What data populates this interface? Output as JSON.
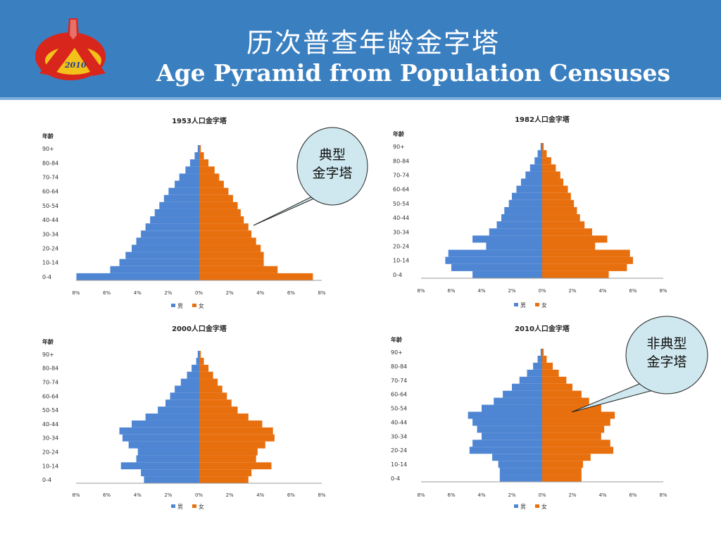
{
  "header": {
    "title_zh": "历次普查年龄金字塔",
    "title_en": "Age Pyramid from Population Censuses",
    "logo_text": "2010"
  },
  "colors": {
    "male": "#4f86d3",
    "female": "#e86f0e",
    "header": "#3a7fc0",
    "callout": "#cfe8ef"
  },
  "callouts": [
    {
      "lines": [
        "典型",
        "金字塔"
      ]
    },
    {
      "lines": [
        "非典型",
        "金字塔"
      ]
    }
  ],
  "chart_data": [
    {
      "type": "bar",
      "title": "1953人口金字塔",
      "ylabel": "年龄",
      "categories": [
        "0-4",
        "",
        "10-14",
        "",
        "20-24",
        "",
        "30-34",
        "",
        "40-44",
        "",
        "50-54",
        "",
        "60-64",
        "",
        "70-74",
        "",
        "80-84",
        "",
        "90+"
      ],
      "xticks": [
        "8%",
        "6%",
        "4%",
        "2%",
        "0%",
        "2%",
        "4%",
        "6%",
        "8%"
      ],
      "xlim": [
        -8,
        8
      ],
      "legend": [
        "男",
        "女"
      ],
      "series": [
        {
          "name": "男",
          "values": [
            8.0,
            5.8,
            5.2,
            4.8,
            4.4,
            4.1,
            3.8,
            3.5,
            3.2,
            2.9,
            2.6,
            2.3,
            2.0,
            1.6,
            1.3,
            0.9,
            0.6,
            0.3,
            0.1
          ]
        },
        {
          "name": "女",
          "values": [
            7.4,
            5.1,
            4.2,
            4.2,
            4.0,
            3.7,
            3.4,
            3.2,
            2.9,
            2.7,
            2.5,
            2.2,
            1.9,
            1.6,
            1.3,
            1.0,
            0.6,
            0.3,
            0.1
          ]
        }
      ]
    },
    {
      "type": "bar",
      "title": "1982人口金字塔",
      "ylabel": "年龄",
      "categories": [
        "0-4",
        "",
        "10-14",
        "",
        "20-24",
        "",
        "30-34",
        "",
        "40-44",
        "",
        "50-54",
        "",
        "60-64",
        "",
        "70-74",
        "",
        "80-84",
        "",
        "90+"
      ],
      "xticks": [
        "8%",
        "6%",
        "4%",
        "2%",
        "0%",
        "2%",
        "4%",
        "6%",
        "8%"
      ],
      "xlim": [
        -8,
        8
      ],
      "legend": [
        "男",
        "女"
      ],
      "series": [
        {
          "name": "男",
          "values": [
            4.6,
            6.0,
            6.4,
            6.2,
            3.7,
            4.6,
            3.5,
            3.0,
            2.7,
            2.5,
            2.2,
            2.0,
            1.7,
            1.4,
            1.1,
            0.8,
            0.5,
            0.3,
            0.1
          ]
        },
        {
          "name": "女",
          "values": [
            4.4,
            5.6,
            6.0,
            5.8,
            3.5,
            4.3,
            3.3,
            2.8,
            2.5,
            2.3,
            2.1,
            1.9,
            1.7,
            1.4,
            1.2,
            0.9,
            0.6,
            0.3,
            0.1
          ]
        }
      ]
    },
    {
      "type": "bar",
      "title": "2000人口金字塔",
      "ylabel": "年龄",
      "categories": [
        "0-4",
        "",
        "10-14",
        "",
        "20-24",
        "",
        "30-34",
        "",
        "40-44",
        "",
        "50-54",
        "",
        "60-64",
        "",
        "70-74",
        "",
        "80-84",
        "",
        "90+"
      ],
      "xticks": [
        "8%",
        "6%",
        "4%",
        "2%",
        "0%",
        "2%",
        "4%",
        "6%",
        "8%"
      ],
      "xlim": [
        -8,
        8
      ],
      "legend": [
        "男",
        "女"
      ],
      "series": [
        {
          "name": "男",
          "values": [
            3.6,
            3.8,
            5.1,
            4.1,
            4.0,
            4.6,
            5.0,
            5.2,
            4.4,
            3.5,
            2.7,
            2.2,
            1.9,
            1.6,
            1.2,
            0.8,
            0.5,
            0.2,
            0.1
          ]
        },
        {
          "name": "女",
          "values": [
            3.2,
            3.4,
            4.7,
            3.7,
            3.8,
            4.3,
            4.9,
            4.8,
            4.1,
            3.2,
            2.5,
            2.1,
            1.8,
            1.5,
            1.2,
            0.9,
            0.6,
            0.3,
            0.1
          ]
        }
      ]
    },
    {
      "type": "bar",
      "title": "2010人口金字塔",
      "ylabel": "年龄",
      "categories": [
        "0-4",
        "",
        "10-14",
        "",
        "20-24",
        "",
        "30-34",
        "",
        "40-44",
        "",
        "50-54",
        "",
        "60-64",
        "",
        "70-74",
        "",
        "80-84",
        "",
        "90+"
      ],
      "xticks": [
        "8%",
        "6%",
        "4%",
        "2%",
        "0%",
        "2%",
        "4%",
        "6%",
        "8%"
      ],
      "xlim": [
        -8,
        8
      ],
      "legend": [
        "男",
        "女"
      ],
      "series": [
        {
          "name": "男",
          "values": [
            2.8,
            2.8,
            2.9,
            3.3,
            4.8,
            4.6,
            4.0,
            4.3,
            4.6,
            4.9,
            4.0,
            3.2,
            2.6,
            2.0,
            1.5,
            1.0,
            0.6,
            0.3,
            0.1
          ]
        },
        {
          "name": "女",
          "values": [
            2.6,
            2.6,
            2.7,
            3.2,
            4.7,
            4.5,
            3.9,
            4.1,
            4.5,
            4.8,
            3.9,
            3.1,
            2.6,
            2.0,
            1.6,
            1.1,
            0.7,
            0.3,
            0.1
          ]
        }
      ]
    }
  ]
}
